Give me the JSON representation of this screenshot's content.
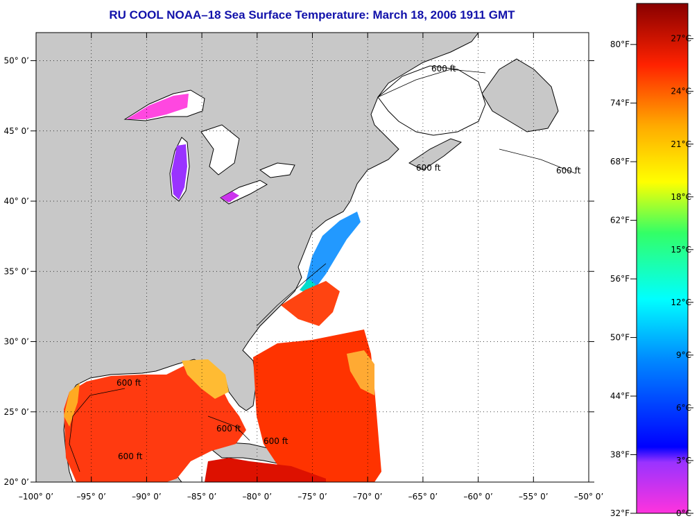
{
  "title": "RU COOL  NOAA–18  Sea Surface Temperature:  March 18, 2006 1911 GMT",
  "map": {
    "lon_range": [
      -100,
      -50
    ],
    "lat_range": [
      20,
      52
    ],
    "lon_ticks": [
      {
        "value": -100,
        "label": "–100° 0’"
      },
      {
        "value": -95,
        "label": "–95° 0’"
      },
      {
        "value": -90,
        "label": "–90° 0’"
      },
      {
        "value": -85,
        "label": "–85° 0’"
      },
      {
        "value": -80,
        "label": "–80° 0’"
      },
      {
        "value": -75,
        "label": "–75° 0’"
      },
      {
        "value": -70,
        "label": "–70° 0’"
      },
      {
        "value": -65,
        "label": "–65° 0’"
      },
      {
        "value": -60,
        "label": "–60° 0’"
      },
      {
        "value": -55,
        "label": "–55° 0’"
      },
      {
        "value": -50,
        "label": "–50° 0’"
      }
    ],
    "lat_ticks": [
      {
        "value": 20,
        "label": "20° 0’"
      },
      {
        "value": 25,
        "label": "25° 0’"
      },
      {
        "value": 30,
        "label": "30° 0’"
      },
      {
        "value": 35,
        "label": "35° 0’"
      },
      {
        "value": 40,
        "label": "40° 0’"
      },
      {
        "value": 45,
        "label": "45° 0’"
      },
      {
        "value": 50,
        "label": "50° 0’"
      }
    ],
    "contour_label": "600 ft",
    "colors": {
      "land": "#c8c8c8",
      "ocean_nodata": "#ffffff",
      "gridline": "#000000"
    }
  },
  "colorbar": {
    "fahrenheit_labels": [
      {
        "value": 32,
        "label": "32°F"
      },
      {
        "value": 38,
        "label": "38°F"
      },
      {
        "value": 44,
        "label": "44°F"
      },
      {
        "value": 50,
        "label": "50°F"
      },
      {
        "value": 56,
        "label": "56°F"
      },
      {
        "value": 62,
        "label": "62°F"
      },
      {
        "value": 68,
        "label": "68°F"
      },
      {
        "value": 74,
        "label": "74°F"
      },
      {
        "value": 80,
        "label": "80°F"
      }
    ],
    "celsius_labels": [
      {
        "value": 0,
        "label": "0°C"
      },
      {
        "value": 3,
        "label": "3°C"
      },
      {
        "value": 6,
        "label": "6°C"
      },
      {
        "value": 9,
        "label": "9°C"
      },
      {
        "value": 12,
        "label": "12°C"
      },
      {
        "value": 15,
        "label": "15°C"
      },
      {
        "value": 18,
        "label": "18°C"
      },
      {
        "value": 21,
        "label": "21°C"
      },
      {
        "value": 24,
        "label": "24°C"
      },
      {
        "value": 27,
        "label": "27°C"
      }
    ],
    "celsius_range": [
      0,
      29
    ],
    "gradient_stops": [
      {
        "value": 0.0,
        "color": "#ff33dd"
      },
      {
        "value": 0.1,
        "color": "#9a33ff"
      },
      {
        "value": 0.13,
        "color": "#0000ff"
      },
      {
        "value": 0.3,
        "color": "#0088ff"
      },
      {
        "value": 0.42,
        "color": "#00ffff"
      },
      {
        "value": 0.55,
        "color": "#33ff66"
      },
      {
        "value": 0.65,
        "color": "#ffff00"
      },
      {
        "value": 0.76,
        "color": "#ffaa00"
      },
      {
        "value": 0.88,
        "color": "#ff2200"
      },
      {
        "value": 1.0,
        "color": "#880000"
      }
    ]
  }
}
